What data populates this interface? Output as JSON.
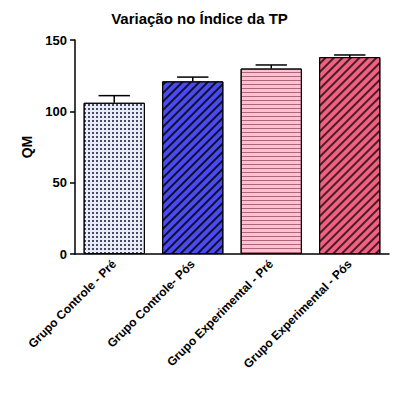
{
  "chart_data": {
    "type": "bar",
    "title": "Variação no Índice da TP",
    "y_label": "QM",
    "categories": [
      "Grupo Controle - Pré",
      "Grupo Controle- Pós",
      "Grupo Experimental - Pré",
      "Grupo Experimental - Pós"
    ],
    "values": [
      106,
      121,
      130,
      138
    ],
    "errors": [
      5,
      3,
      2.5,
      1.5
    ],
    "colors": [
      "#e8ecf5",
      "#4a4af0",
      "#ffc0d0",
      "#f06080"
    ],
    "ylim": [
      0,
      150
    ],
    "yticks": [
      0,
      50,
      100,
      150
    ],
    "grid": false
  }
}
